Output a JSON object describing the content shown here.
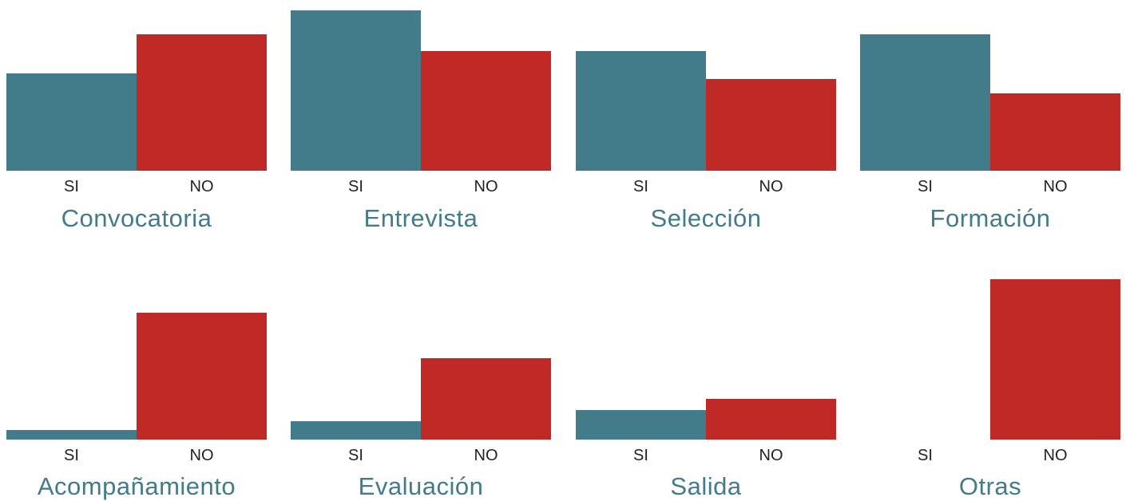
{
  "colors": {
    "si": "#427b8a",
    "no": "#c02a26",
    "title": "#427b8a",
    "tick": "#222222"
  },
  "chart_data": [
    {
      "type": "bar",
      "title": "Convocatoria",
      "categories": [
        "SI",
        "NO"
      ],
      "values": [
        122,
        171
      ],
      "ylim": [
        0,
        201
      ]
    },
    {
      "type": "bar",
      "title": "Entrevista",
      "categories": [
        "SI",
        "NO"
      ],
      "values": [
        201,
        150
      ],
      "ylim": [
        0,
        201
      ]
    },
    {
      "type": "bar",
      "title": "Selección",
      "categories": [
        "SI",
        "NO"
      ],
      "values": [
        150,
        115
      ],
      "ylim": [
        0,
        201
      ]
    },
    {
      "type": "bar",
      "title": "Formación",
      "categories": [
        "SI",
        "NO"
      ],
      "values": [
        171,
        97
      ],
      "ylim": [
        0,
        201
      ]
    },
    {
      "type": "bar",
      "title": "Acompañamiento",
      "categories": [
        "SI",
        "NO"
      ],
      "values": [
        12,
        159
      ],
      "ylim": [
        0,
        201
      ]
    },
    {
      "type": "bar",
      "title": "Evaluación",
      "categories": [
        "SI",
        "NO"
      ],
      "values": [
        23,
        102
      ],
      "ylim": [
        0,
        201
      ]
    },
    {
      "type": "bar",
      "title": "Salida",
      "categories": [
        "SI",
        "NO"
      ],
      "values": [
        37,
        51
      ],
      "ylim": [
        0,
        201
      ]
    },
    {
      "type": "bar",
      "title": "Otras",
      "categories": [
        "SI",
        "NO"
      ],
      "values": [
        0,
        201
      ],
      "ylim": [
        0,
        201
      ]
    }
  ]
}
